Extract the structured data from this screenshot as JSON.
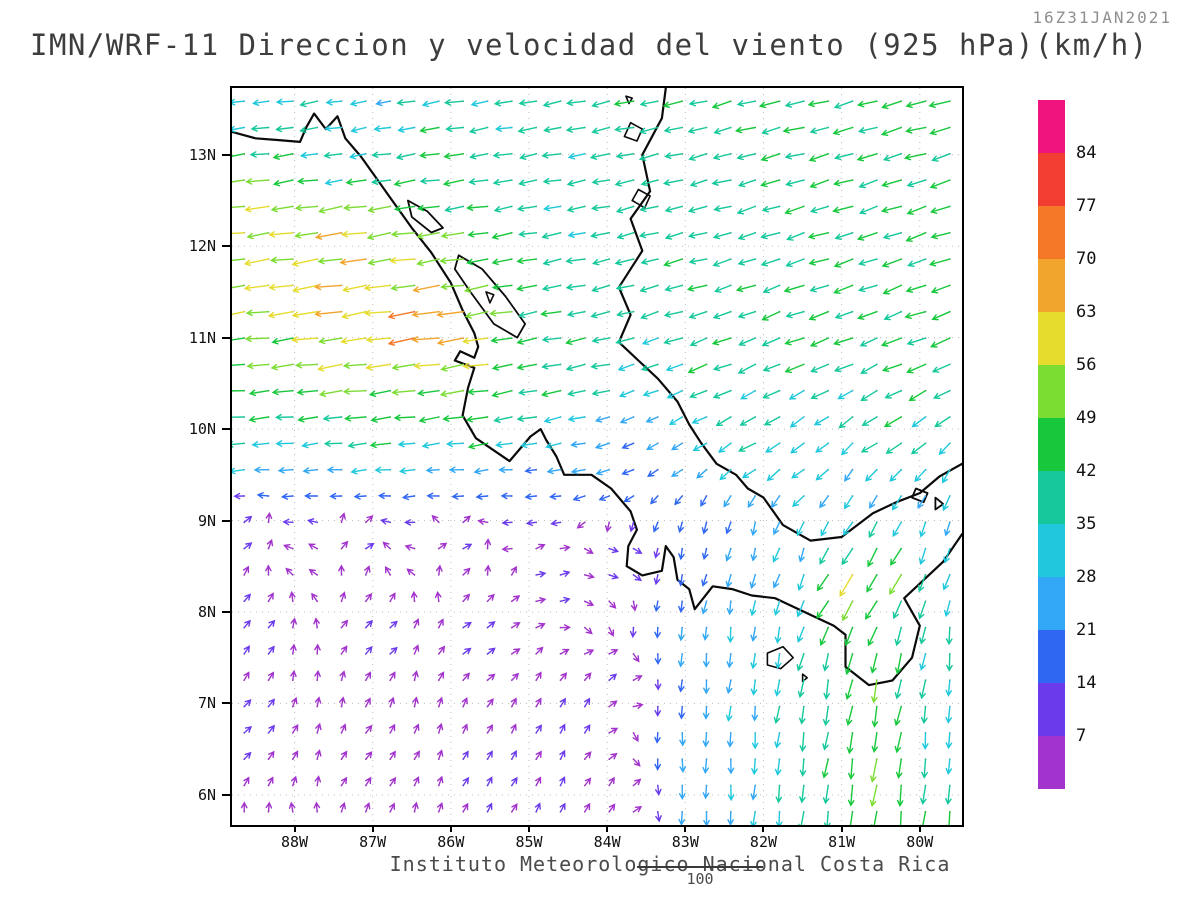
{
  "header": {
    "title": "IMN/WRF-11 Direccion y velocidad del viento (925 hPa)(km/h)",
    "timestamp": "16Z31JAN2021"
  },
  "footer": {
    "credit": "Instituto Meteorologico Nacional Costa Rica",
    "note": "100"
  },
  "chart_data": {
    "type": "quiver",
    "title": "IMN/WRF-11 Direccion y velocidad del viento (925 hPa)(km/h)",
    "model": "IMN/WRF-11",
    "variable": "Direccion y velocidad del viento",
    "level": "925 hPa",
    "units": "km/h",
    "valid_time": "16Z31JAN2021",
    "lon_range": [
      -88.8,
      -79.46
    ],
    "lat_range": [
      5.67,
      13.73
    ],
    "lon_ticks": {
      "labels": [
        "88W",
        "87W",
        "86W",
        "85W",
        "84W",
        "83W",
        "82W",
        "81W",
        "80W"
      ],
      "values": [
        -88,
        -87,
        -86,
        -85,
        -84,
        -83,
        -82,
        -81,
        -80
      ]
    },
    "lat_ticks": {
      "labels": [
        "6N",
        "7N",
        "8N",
        "9N",
        "10N",
        "11N",
        "12N",
        "13N"
      ],
      "values": [
        6,
        7,
        8,
        9,
        10,
        11,
        12,
        13
      ]
    },
    "gridlines": {
      "lons": [
        -88,
        -87,
        -86,
        -85,
        -84,
        -83,
        -82,
        -81,
        -80
      ],
      "lats": [
        6,
        7,
        8,
        9,
        10,
        11,
        12,
        13
      ]
    },
    "grid": {
      "ncols": 30,
      "nrows": 28
    },
    "colorbar": {
      "units": "km/h",
      "levels": [
        7,
        14,
        21,
        28,
        35,
        42,
        49,
        56,
        63,
        70,
        77,
        84
      ],
      "colors": [
        "#A233CC",
        "#6B3BEB",
        "#2F66F2",
        "#32A7F5",
        "#1FC8DC",
        "#14C89B",
        "#17C83C",
        "#7BDC32",
        "#E6DC2E",
        "#F2A52C",
        "#F57828",
        "#F23D33",
        "#F0147F"
      ]
    },
    "wind_controls_format": "[lon_degE, lat_degN, u_kmh_eastward, v_kmh_northward]",
    "wind_controls": [
      [
        -88.6,
        13.6,
        -30,
        -3
      ],
      [
        -87.0,
        13.5,
        -28,
        -5
      ],
      [
        -85.3,
        13.55,
        -35,
        -6
      ],
      [
        -83.5,
        13.5,
        -40,
        -8
      ],
      [
        -81.5,
        13.5,
        -43,
        -10
      ],
      [
        -79.8,
        13.4,
        -45,
        -12
      ],
      [
        -79.7,
        12.2,
        -43,
        -14
      ],
      [
        -81.0,
        12.3,
        -41,
        -12
      ],
      [
        -82.8,
        12.4,
        -37,
        -9
      ],
      [
        -84.5,
        12.6,
        -36,
        -6
      ],
      [
        -86.0,
        12.7,
        -42,
        -6
      ],
      [
        -87.4,
        12.9,
        -34,
        -5
      ],
      [
        -88.5,
        12.35,
        -55,
        -7
      ],
      [
        -87.3,
        12.15,
        -62,
        -9
      ],
      [
        -86.3,
        11.9,
        -55,
        -8
      ],
      [
        -88.55,
        11.5,
        -58,
        -8
      ],
      [
        -87.5,
        11.35,
        -66,
        -10
      ],
      [
        -86.35,
        11.15,
        -78,
        -11
      ],
      [
        -85.75,
        10.95,
        -64,
        -10
      ],
      [
        -84.6,
        11.3,
        -40,
        -7
      ],
      [
        -84.4,
        10.7,
        -42,
        -8
      ],
      [
        -88.5,
        10.75,
        -50,
        -5
      ],
      [
        -87.2,
        10.65,
        -56,
        -7
      ],
      [
        -86.1,
        10.5,
        -52,
        -7
      ],
      [
        -88.6,
        10.05,
        -42,
        -3
      ],
      [
        -87.0,
        10.0,
        -46,
        -5
      ],
      [
        -85.6,
        10.1,
        -48,
        -7
      ],
      [
        -84.8,
        10.3,
        -40,
        -8
      ],
      [
        -88.6,
        9.6,
        -28,
        -2
      ],
      [
        -87.3,
        9.55,
        -26,
        -2
      ],
      [
        -86.0,
        9.5,
        -22,
        -1
      ],
      [
        -85.0,
        9.35,
        -15,
        0
      ],
      [
        -84.2,
        9.7,
        -26,
        -5
      ],
      [
        -83.4,
        9.8,
        -18,
        -10
      ],
      [
        -82.6,
        10.7,
        -40,
        -15
      ],
      [
        -81.3,
        10.9,
        -42,
        -15
      ],
      [
        -80.0,
        10.9,
        -43,
        -16
      ],
      [
        -82.9,
        11.6,
        -39,
        -10
      ],
      [
        -81.2,
        11.6,
        -42,
        -13
      ],
      [
        -79.8,
        11.3,
        -43,
        -15
      ],
      [
        -82.0,
        9.9,
        -33,
        -18
      ],
      [
        -80.3,
        9.9,
        -36,
        -20
      ],
      [
        -81.3,
        9.6,
        -25,
        -18
      ],
      [
        -79.7,
        9.3,
        -15,
        -26
      ],
      [
        -80.8,
        9.35,
        -12,
        -24
      ],
      [
        -88.6,
        8.9,
        8,
        5
      ],
      [
        -87.2,
        8.85,
        9,
        5
      ],
      [
        -85.9,
        8.8,
        10,
        4
      ],
      [
        -88.6,
        7.9,
        7,
        7
      ],
      [
        -87.0,
        7.8,
        8,
        7
      ],
      [
        -85.6,
        7.7,
        9,
        6
      ],
      [
        -88.6,
        6.7,
        6,
        6
      ],
      [
        -87.0,
        6.4,
        4,
        5
      ],
      [
        -85.5,
        6.2,
        5,
        8
      ],
      [
        -84.5,
        6.8,
        5,
        9
      ],
      [
        -84.6,
        5.8,
        4,
        8
      ],
      [
        -84.7,
        8.4,
        11,
        3
      ],
      [
        -83.9,
        8.6,
        12,
        -2
      ],
      [
        -83.9,
        7.2,
        6,
        6
      ],
      [
        -83.8,
        6.0,
        4,
        6
      ],
      [
        -83.0,
        8.8,
        -2,
        -16
      ],
      [
        -82.9,
        7.6,
        -1,
        -24
      ],
      [
        -82.9,
        6.4,
        0,
        -26
      ],
      [
        -82.9,
        5.8,
        0,
        -26
      ],
      [
        -82.2,
        8.9,
        -4,
        -22
      ],
      [
        -82.2,
        7.8,
        -2,
        -28
      ],
      [
        -82.2,
        6.5,
        -1,
        -30
      ],
      [
        -81.5,
        8.7,
        -8,
        -26
      ],
      [
        -81.3,
        7.0,
        -6,
        -40
      ],
      [
        -81.4,
        6.0,
        -4,
        -38
      ],
      [
        -80.9,
        8.35,
        -32,
        -48
      ],
      [
        -80.2,
        8.5,
        -25,
        -45
      ],
      [
        -80.6,
        7.3,
        -10,
        -50
      ],
      [
        -80.6,
        6.3,
        -8,
        -52
      ],
      [
        -80.0,
        5.9,
        -5,
        -45
      ],
      [
        -79.6,
        7.8,
        -2,
        -34
      ],
      [
        -79.55,
        6.6,
        0,
        -30
      ],
      [
        -79.5,
        8.6,
        -8,
        -28
      ],
      [
        -79.8,
        8.9,
        -6,
        -26
      ]
    ],
    "map": {
      "coastlines": [
        [
          [
            -88.8,
            13.25
          ],
          [
            -88.5,
            13.18
          ],
          [
            -88.2,
            13.16
          ],
          [
            -87.93,
            13.14
          ],
          [
            -87.85,
            13.3
          ],
          [
            -87.75,
            13.45
          ],
          [
            -87.6,
            13.28
          ],
          [
            -87.45,
            13.42
          ],
          [
            -87.35,
            13.18
          ],
          [
            -87.15,
            12.98
          ],
          [
            -86.75,
            12.5
          ],
          [
            -86.5,
            12.2
          ],
          [
            -86.25,
            11.93
          ],
          [
            -86.0,
            11.6
          ],
          [
            -85.85,
            11.3
          ],
          [
            -85.7,
            11.05
          ],
          [
            -85.65,
            10.9
          ],
          [
            -85.7,
            10.78
          ],
          [
            -85.88,
            10.85
          ],
          [
            -85.95,
            10.75
          ],
          [
            -85.7,
            10.67
          ],
          [
            -85.78,
            10.45
          ],
          [
            -85.85,
            10.15
          ],
          [
            -85.68,
            9.9
          ],
          [
            -85.25,
            9.65
          ],
          [
            -84.98,
            9.92
          ],
          [
            -84.85,
            10.0
          ],
          [
            -84.78,
            9.88
          ],
          [
            -84.65,
            9.7
          ],
          [
            -84.55,
            9.5
          ],
          [
            -84.2,
            9.5
          ],
          [
            -83.95,
            9.35
          ],
          [
            -83.7,
            9.1
          ],
          [
            -83.62,
            8.9
          ],
          [
            -83.73,
            8.72
          ],
          [
            -83.75,
            8.5
          ],
          [
            -83.55,
            8.4
          ],
          [
            -83.3,
            8.45
          ],
          [
            -83.25,
            8.72
          ],
          [
            -83.15,
            8.6
          ],
          [
            -83.1,
            8.35
          ],
          [
            -82.95,
            8.25
          ],
          [
            -82.88,
            8.03
          ],
          [
            -82.65,
            8.28
          ],
          [
            -82.4,
            8.25
          ],
          [
            -82.15,
            8.18
          ],
          [
            -81.85,
            8.15
          ],
          [
            -81.55,
            8.03
          ],
          [
            -81.1,
            7.85
          ],
          [
            -80.95,
            7.75
          ],
          [
            -80.95,
            7.4
          ],
          [
            -80.65,
            7.2
          ],
          [
            -80.35,
            7.25
          ],
          [
            -80.1,
            7.5
          ],
          [
            -80.0,
            7.85
          ],
          [
            -80.2,
            8.15
          ],
          [
            -79.95,
            8.35
          ],
          [
            -79.7,
            8.55
          ],
          [
            -79.46,
            8.85
          ]
        ],
        [
          [
            -83.25,
            13.73
          ],
          [
            -83.3,
            13.4
          ],
          [
            -83.55,
            13.0
          ],
          [
            -83.45,
            12.6
          ],
          [
            -83.7,
            12.3
          ],
          [
            -83.55,
            11.95
          ],
          [
            -83.85,
            11.55
          ],
          [
            -83.7,
            11.25
          ],
          [
            -83.85,
            10.95
          ],
          [
            -83.6,
            10.75
          ],
          [
            -83.35,
            10.55
          ],
          [
            -83.1,
            10.3
          ],
          [
            -82.95,
            10.05
          ],
          [
            -82.8,
            9.85
          ],
          [
            -82.6,
            9.62
          ],
          [
            -82.35,
            9.5
          ],
          [
            -82.2,
            9.35
          ],
          [
            -82.0,
            9.25
          ],
          [
            -81.75,
            8.95
          ],
          [
            -81.4,
            8.78
          ],
          [
            -81.0,
            8.82
          ],
          [
            -80.6,
            9.08
          ],
          [
            -80.3,
            9.2
          ],
          [
            -80.0,
            9.3
          ],
          [
            -79.75,
            9.48
          ],
          [
            -79.46,
            9.62
          ]
        ]
      ],
      "lakes": [
        [
          [
            -85.9,
            11.9
          ],
          [
            -85.6,
            11.75
          ],
          [
            -85.3,
            11.45
          ],
          [
            -85.05,
            11.15
          ],
          [
            -85.15,
            11.0
          ],
          [
            -85.45,
            11.15
          ],
          [
            -85.75,
            11.5
          ],
          [
            -85.95,
            11.75
          ]
        ],
        [
          [
            -86.55,
            12.5
          ],
          [
            -86.3,
            12.38
          ],
          [
            -86.1,
            12.2
          ],
          [
            -86.25,
            12.15
          ],
          [
            -86.5,
            12.32
          ]
        ],
        [
          [
            -80.05,
            9.35
          ],
          [
            -79.9,
            9.3
          ],
          [
            -79.95,
            9.2
          ],
          [
            -80.1,
            9.25
          ]
        ],
        [
          [
            -79.8,
            9.25
          ],
          [
            -79.7,
            9.18
          ],
          [
            -79.8,
            9.12
          ]
        ]
      ],
      "islands": [
        [
          [
            -85.55,
            11.5
          ],
          [
            -85.45,
            11.47
          ],
          [
            -85.5,
            11.38
          ]
        ],
        [
          [
            -83.7,
            13.35
          ],
          [
            -83.55,
            13.28
          ],
          [
            -83.62,
            13.15
          ],
          [
            -83.78,
            13.2
          ]
        ],
        [
          [
            -83.6,
            12.62
          ],
          [
            -83.45,
            12.55
          ],
          [
            -83.52,
            12.42
          ],
          [
            -83.68,
            12.5
          ]
        ],
        [
          [
            -83.76,
            13.64
          ],
          [
            -83.68,
            13.62
          ],
          [
            -83.72,
            13.56
          ]
        ],
        [
          [
            -81.95,
            7.55
          ],
          [
            -81.75,
            7.62
          ],
          [
            -81.62,
            7.5
          ],
          [
            -81.78,
            7.38
          ],
          [
            -81.95,
            7.42
          ]
        ],
        [
          [
            -81.5,
            7.32
          ],
          [
            -81.44,
            7.28
          ],
          [
            -81.5,
            7.24
          ]
        ]
      ]
    }
  }
}
